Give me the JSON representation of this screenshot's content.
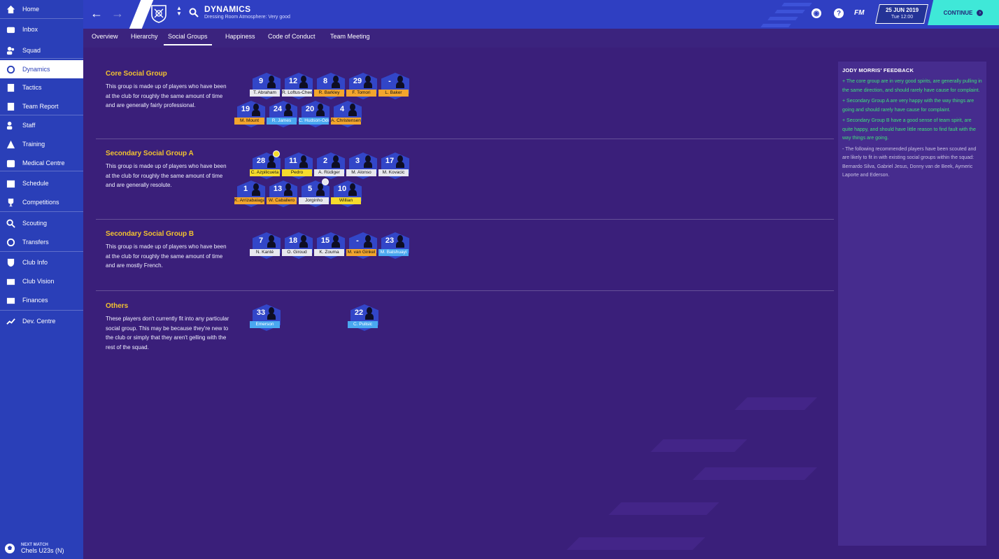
{
  "sidebar": {
    "items": [
      {
        "label": "Home",
        "icon": "home-icon"
      },
      {
        "label": "Inbox",
        "icon": "inbox-icon"
      },
      {
        "label": "Squad",
        "icon": "squad-icon"
      },
      {
        "label": "Dynamics",
        "icon": "dynamics-icon"
      },
      {
        "label": "Tactics",
        "icon": "tactics-icon"
      },
      {
        "label": "Team Report",
        "icon": "team-report-icon"
      },
      {
        "label": "Staff",
        "icon": "staff-icon"
      },
      {
        "label": "Training",
        "icon": "training-icon"
      },
      {
        "label": "Medical Centre",
        "icon": "medical-icon"
      },
      {
        "label": "Schedule",
        "icon": "schedule-icon"
      },
      {
        "label": "Competitions",
        "icon": "trophy-icon"
      },
      {
        "label": "Scouting",
        "icon": "scouting-icon"
      },
      {
        "label": "Transfers",
        "icon": "transfers-icon"
      },
      {
        "label": "Club Info",
        "icon": "shield-icon"
      },
      {
        "label": "Club Vision",
        "icon": "club-vision-icon"
      },
      {
        "label": "Finances",
        "icon": "finances-icon"
      },
      {
        "label": "Dev. Centre",
        "icon": "dev-centre-icon"
      }
    ],
    "next_match": {
      "label": "NEXT MATCH",
      "value": "Chels U23s (N)"
    }
  },
  "header": {
    "title": "DYNAMICS",
    "subtitle": "Dressing Room Atmosphere: Very good",
    "fm_logo": "FM",
    "date": "25 JUN 2019",
    "time": "Tue 12:00",
    "continue_label": "CONTINUE",
    "help_icon": "?"
  },
  "tabs": [
    {
      "label": "Overview"
    },
    {
      "label": "Hierarchy"
    },
    {
      "label": "Social Groups"
    },
    {
      "label": "Happiness"
    },
    {
      "label": "Code of Conduct"
    },
    {
      "label": "Team Meeting"
    }
  ],
  "groups": [
    {
      "title": "Core Social Group",
      "description": "This group is made up of players who have been at the club for roughly the same amount of time and are generally fairly professional.",
      "players": [
        {
          "number": "9",
          "name": "T. Abraham",
          "color": "white"
        },
        {
          "number": "12",
          "name": "R. Loftus-Cheek",
          "color": "white"
        },
        {
          "number": "8",
          "name": "R. Barkley",
          "color": "orange"
        },
        {
          "number": "29",
          "name": "F. Tomori",
          "color": "orange"
        },
        {
          "number": "-",
          "name": "L. Baker",
          "color": "orange"
        },
        {
          "number": "19",
          "name": "M. Mount",
          "color": "orange"
        },
        {
          "number": "24",
          "name": "R. James",
          "color": "blue"
        },
        {
          "number": "20",
          "name": "C. Hudson-Odoi",
          "color": "blue"
        },
        {
          "number": "4",
          "name": "A. Christensen",
          "color": "orange"
        }
      ]
    },
    {
      "title": "Secondary Social Group A",
      "description": "This group is made up of players who have been at the club for roughly the same amount of time and are generally resolute.",
      "players": [
        {
          "number": "28",
          "name": "C. Azpilicueta",
          "color": "yellow"
        },
        {
          "number": "11",
          "name": "Pedro",
          "color": "yellow"
        },
        {
          "number": "2",
          "name": "A. Rüdiger",
          "color": "white"
        },
        {
          "number": "3",
          "name": "M. Alonso",
          "color": "white"
        },
        {
          "number": "17",
          "name": "M. Kovacic",
          "color": "white"
        },
        {
          "number": "1",
          "name": "K. Arrizabalaga",
          "color": "orange"
        },
        {
          "number": "13",
          "name": "W. Caballero",
          "color": "orange"
        },
        {
          "number": "5",
          "name": "Jorginho",
          "color": "white"
        },
        {
          "number": "10",
          "name": "Willian",
          "color": "yellow"
        }
      ]
    },
    {
      "title": "Secondary Social Group B",
      "description": "This group is made up of players who have been at the club for roughly the same amount of time and are mostly French.",
      "players": [
        {
          "number": "7",
          "name": "N. Kanté",
          "color": "white"
        },
        {
          "number": "18",
          "name": "O. Giroud",
          "color": "white"
        },
        {
          "number": "15",
          "name": "K. Zouma",
          "color": "white"
        },
        {
          "number": "-",
          "name": "M. van Ginkel",
          "color": "orange"
        },
        {
          "number": "23",
          "name": "M. Batshuayi",
          "color": "blue"
        }
      ]
    },
    {
      "title": "Others",
      "description": "These players don't currently fit into any particular social group. This may be because they're new to the club or simply that they aren't gelling with the rest of the squad.",
      "players": [
        {
          "number": "33",
          "name": "Emerson",
          "color": "blue"
        },
        {
          "number": "22",
          "name": "C. Pulisic",
          "color": "blue"
        }
      ]
    }
  ],
  "feedback": {
    "title": "JODY MORRIS' FEEDBACK",
    "items": [
      {
        "text": "+  The core group are in very good spirits, are generally pulling in the same direction, and should rarely have cause for complaint.",
        "tone": "positive"
      },
      {
        "text": "+  Secondary Group A are very happy with the way things are going and should rarely have cause for complaint.",
        "tone": "positive"
      },
      {
        "text": "+  Secondary Group B have a good sense of team spirit, are quite happy, and should have little reason to find fault with the way things are going.",
        "tone": "positive"
      },
      {
        "text": "-  The following recommended players have been scouted and are likely to fit in with existing social groups within the squad: Bernardo Silva, Gabriel Jesus, Donny van de Beek, Aymeric Laporte and Ederson.",
        "tone": "neutral"
      }
    ]
  },
  "colors": {
    "sidebar": "#2a3fb8",
    "header": "#2f3fc2",
    "main_bg": "#3a1f7a",
    "accent_continue": "#3fe8d8",
    "group_title": "#f2c230",
    "feedback_positive": "#3fe07a"
  }
}
